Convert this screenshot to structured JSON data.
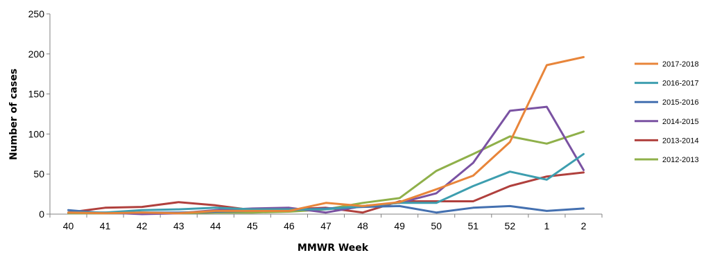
{
  "chart_data": {
    "type": "line",
    "title": "",
    "xlabel": "MMWR Week",
    "ylabel": "Number of cases",
    "ylim": [
      0,
      250
    ],
    "yticks": [
      0,
      50,
      100,
      150,
      200,
      250
    ],
    "grid": false,
    "legend_position": "right",
    "categories": [
      "40",
      "41",
      "42",
      "43",
      "44",
      "45",
      "46",
      "47",
      "48",
      "49",
      "50",
      "51",
      "52",
      "1",
      "2"
    ],
    "series": [
      {
        "name": "2017-2018",
        "color": "#E8853A",
        "values": [
          2,
          1,
          2,
          1,
          4,
          4,
          4,
          14,
          10,
          15,
          31,
          48,
          90,
          186,
          196
        ]
      },
      {
        "name": "2016-2017",
        "color": "#3D9EAF",
        "values": [
          2,
          2,
          5,
          6,
          8,
          6,
          6,
          6,
          10,
          14,
          14,
          35,
          53,
          43,
          75
        ]
      },
      {
        "name": "2015-2016",
        "color": "#4470B0",
        "values": [
          5,
          1,
          2,
          2,
          3,
          4,
          5,
          7,
          9,
          10,
          2,
          8,
          10,
          4,
          7
        ]
      },
      {
        "name": "2014-2015",
        "color": "#7A52A2",
        "values": [
          2,
          2,
          0,
          1,
          5,
          7,
          8,
          2,
          10,
          14,
          26,
          64,
          129,
          134,
          55
        ]
      },
      {
        "name": "2013-2014",
        "color": "#B0403D",
        "values": [
          2,
          8,
          9,
          15,
          11,
          5,
          6,
          8,
          2,
          16,
          16,
          16,
          35,
          47,
          52
        ]
      },
      {
        "name": "2012-2013",
        "color": "#8FB04A",
        "values": [
          1,
          1,
          2,
          1,
          2,
          2,
          3,
          6,
          14,
          20,
          54,
          75,
          97,
          88,
          103
        ]
      }
    ]
  }
}
